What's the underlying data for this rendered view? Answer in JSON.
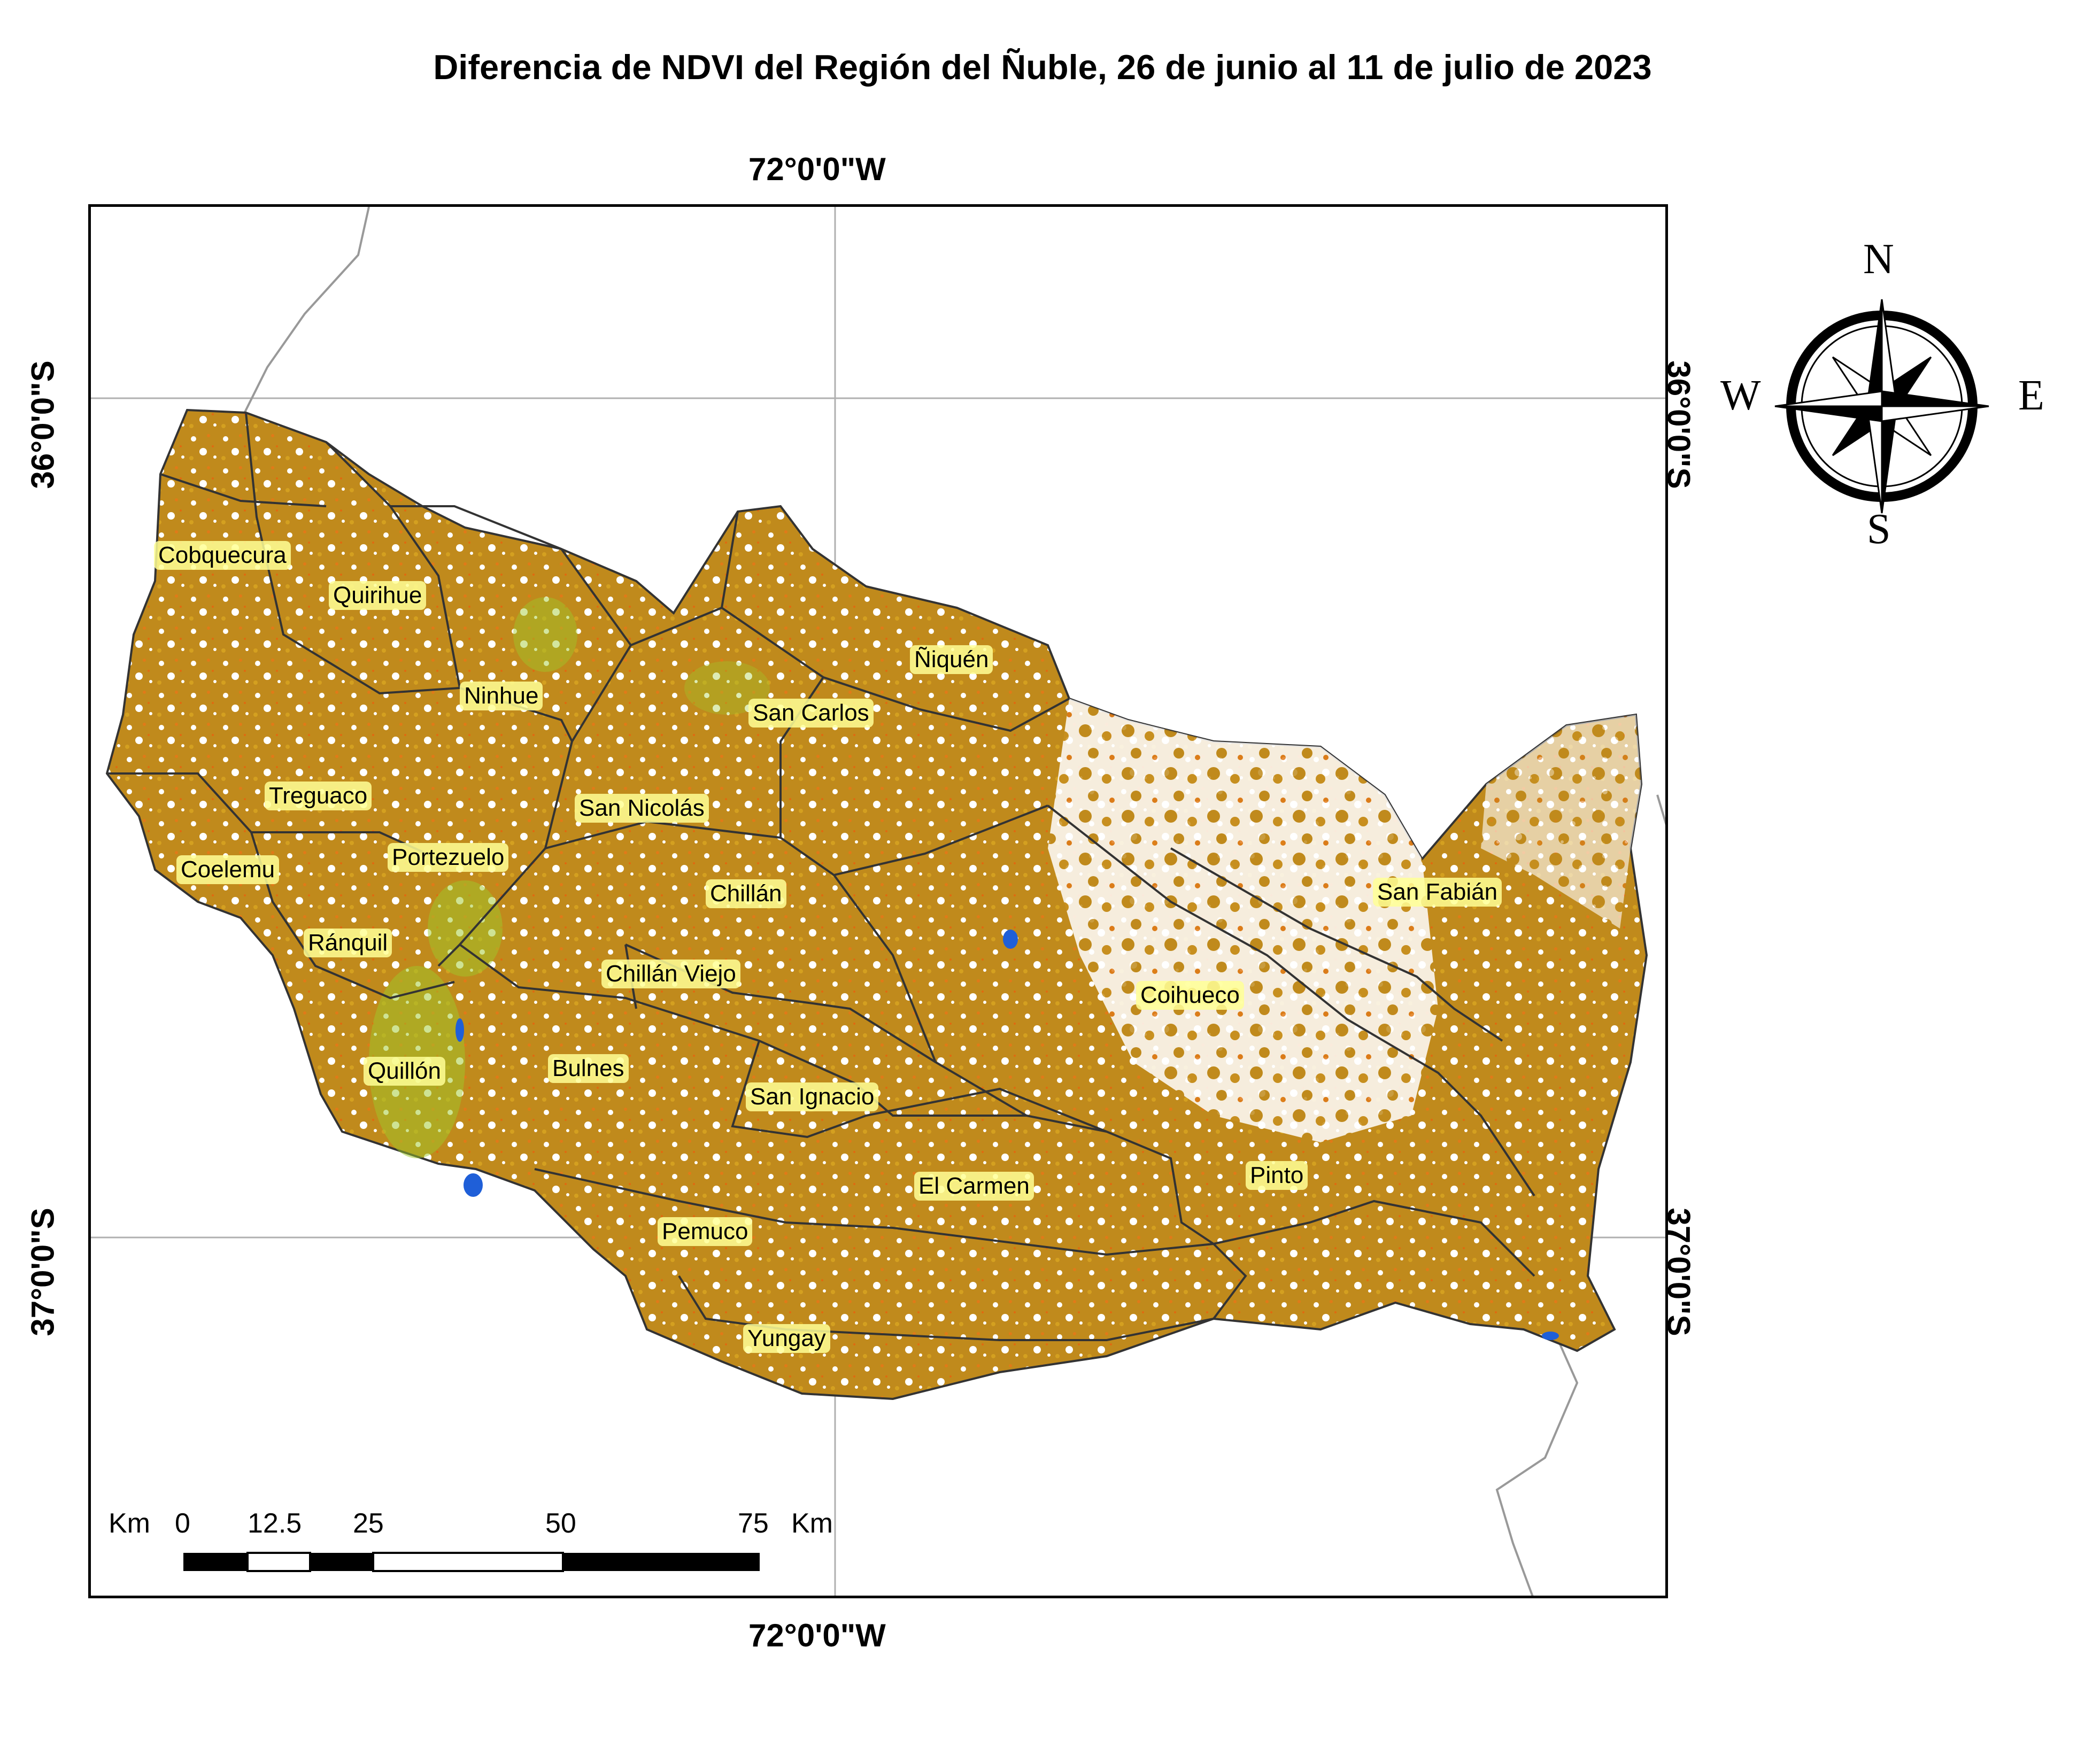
{
  "title": "Diferencia de NDVI del Región del Ñuble, 26 de junio al 11 de julio de 2023",
  "coords": {
    "lon_top": "72°0'0\"W",
    "lon_bottom": "72°0'0\"W",
    "lat_36_left": "36°0'0\"S",
    "lat_36_right": "36°0'0\"S",
    "lat_37_left": "37°0'0\"S",
    "lat_37_right": "37°0'0\"S"
  },
  "communes": [
    {
      "name": "Cobquecura"
    },
    {
      "name": "Quirihue"
    },
    {
      "name": "Ninhue"
    },
    {
      "name": "Ñiquén"
    },
    {
      "name": "San Carlos"
    },
    {
      "name": "Treguaco"
    },
    {
      "name": "San Nicolás"
    },
    {
      "name": "Portezuelo"
    },
    {
      "name": "Coelemu"
    },
    {
      "name": "Chillán"
    },
    {
      "name": "San Fabián"
    },
    {
      "name": "Ránquil"
    },
    {
      "name": "Chillán Viejo"
    },
    {
      "name": "Coihueco"
    },
    {
      "name": "Quillón"
    },
    {
      "name": "Bulnes"
    },
    {
      "name": "San Ignacio"
    },
    {
      "name": "El Carmen"
    },
    {
      "name": "Pinto"
    },
    {
      "name": "Pemuco"
    },
    {
      "name": "Yungay"
    }
  ],
  "scale_bar": {
    "unit_left": "Km",
    "ticks": [
      "0",
      "12.5",
      "25",
      "50",
      "75"
    ],
    "unit_right": "Km"
  },
  "compass": {
    "n": "N",
    "s": "S",
    "e": "E",
    "w": "W"
  },
  "colors": {
    "ndvi_main": "#c08a1c",
    "ndvi_low": "#e06a10",
    "ndvi_high": "#9ec82a",
    "water": "#1f5fd8",
    "boundary": "#333333",
    "label_halo": "#fffa80"
  }
}
